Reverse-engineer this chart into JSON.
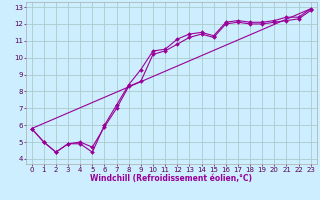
{
  "xlabel": "Windchill (Refroidissement éolien,°C)",
  "bg_color": "#cceeff",
  "grid_color": "#aacccc",
  "line_color": "#990099",
  "marker": "D",
  "markersize": 2,
  "linewidth": 0.8,
  "xlim": [
    -0.5,
    23.5
  ],
  "ylim": [
    3.7,
    13.3
  ],
  "xticks": [
    0,
    1,
    2,
    3,
    4,
    5,
    6,
    7,
    8,
    9,
    10,
    11,
    12,
    13,
    14,
    15,
    16,
    17,
    18,
    19,
    20,
    21,
    22,
    23
  ],
  "yticks": [
    4,
    5,
    6,
    7,
    8,
    9,
    10,
    11,
    12,
    13
  ],
  "tick_fontsize": 5.0,
  "xlabel_fontsize": 5.5,
  "lines": [
    {
      "x": [
        0,
        1,
        2,
        3,
        4,
        5,
        6,
        7,
        8,
        9,
        10,
        11,
        12,
        13,
        14,
        15,
        16,
        17,
        18,
        19,
        20,
        21,
        22,
        23
      ],
      "y": [
        5.8,
        5.0,
        4.4,
        4.9,
        4.9,
        4.4,
        6.0,
        7.2,
        8.4,
        9.3,
        10.4,
        10.5,
        11.1,
        11.4,
        11.5,
        11.3,
        12.1,
        12.2,
        12.1,
        12.1,
        12.2,
        12.4,
        12.4,
        12.9
      ],
      "has_markers": true
    },
    {
      "x": [
        0,
        1,
        2,
        3,
        4,
        5,
        6,
        7,
        8,
        9,
        10,
        11,
        12,
        13,
        14,
        15,
        16,
        17,
        18,
        19,
        20,
        21,
        22,
        23
      ],
      "y": [
        5.8,
        5.0,
        4.4,
        4.9,
        5.0,
        4.7,
        5.9,
        7.0,
        8.3,
        8.6,
        10.2,
        10.4,
        10.8,
        11.2,
        11.4,
        11.2,
        12.0,
        12.1,
        12.0,
        12.0,
        12.1,
        12.2,
        12.3,
        12.8
      ],
      "has_markers": true
    },
    {
      "x": [
        0,
        23
      ],
      "y": [
        5.8,
        12.9
      ],
      "has_markers": false
    }
  ]
}
